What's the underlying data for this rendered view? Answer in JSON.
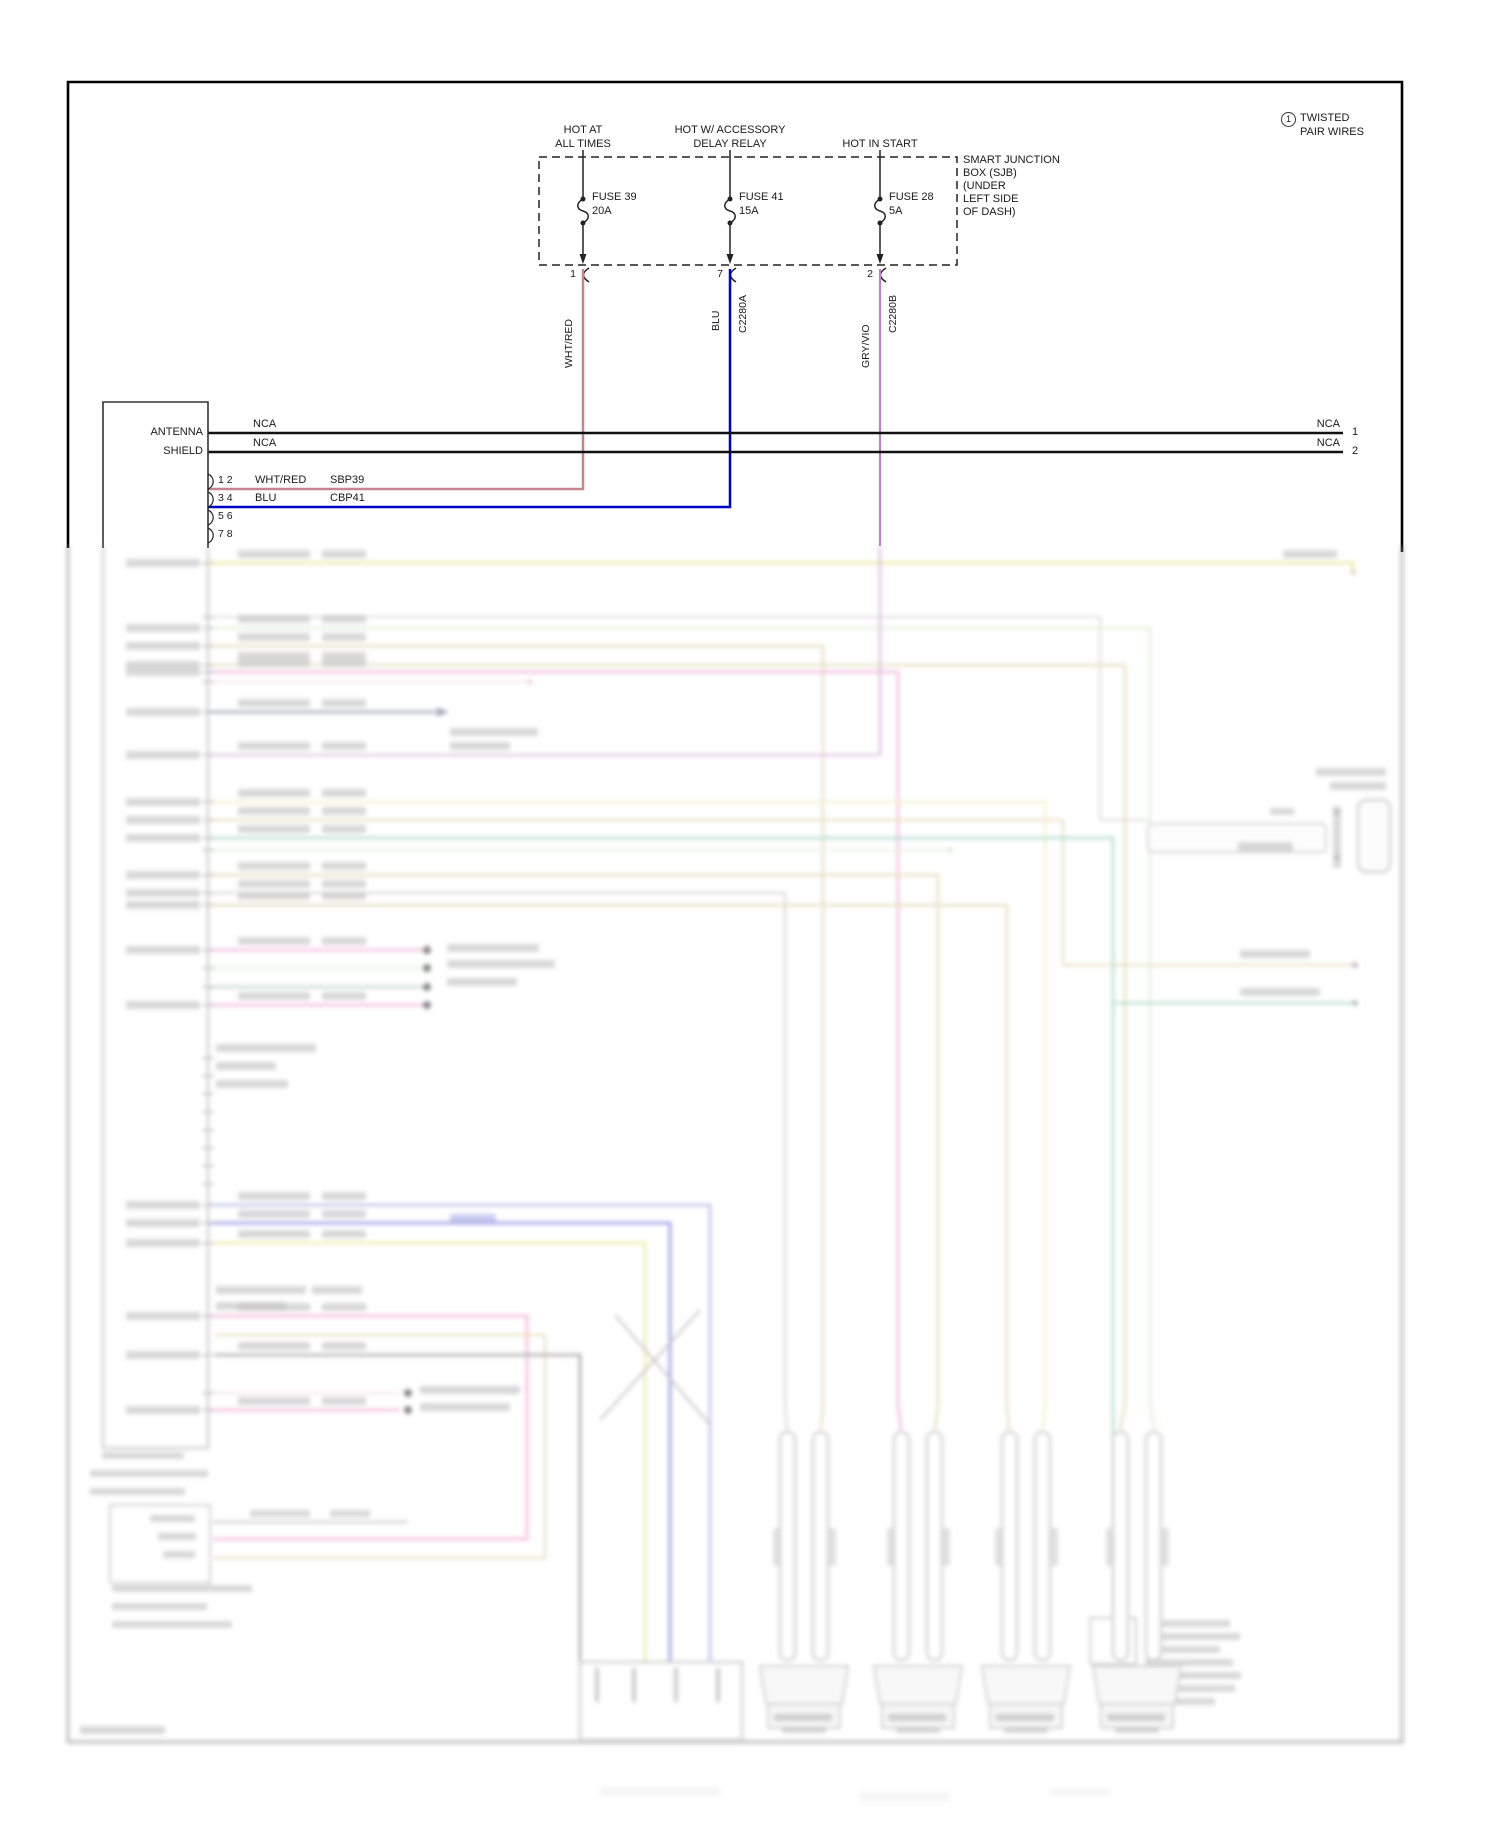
{
  "note": {
    "ref_number": "1",
    "line1": "TWISTED",
    "line2": "PAIR WIRES"
  },
  "power_labels": [
    {
      "line1": "HOT AT",
      "line2": "ALL TIMES"
    },
    {
      "line1": "HOT W/ ACCESSORY",
      "line2": "DELAY RELAY"
    },
    {
      "line1": "HOT IN START",
      "line2": ""
    }
  ],
  "sjb_label": {
    "lines": [
      "SMART JUNCTION",
      "BOX (SJB)",
      "(UNDER",
      "LEFT SIDE",
      "OF DASH)"
    ]
  },
  "fuses": [
    {
      "name": "FUSE 39",
      "rating": "20A",
      "pin": "1",
      "wire_label": "WHT/RED",
      "connector": "",
      "wire_color": "#c4868c"
    },
    {
      "name": "FUSE 41",
      "rating": "15A",
      "pin": "7",
      "wire_label": "BLU",
      "connector": "C2280A",
      "wire_color": "#0000cd"
    },
    {
      "name": "FUSE 28",
      "rating": "5A",
      "pin": "2",
      "wire_label": "GRY/VIO",
      "connector": "C2280B",
      "wire_color": "#bd84c5"
    }
  ],
  "radio": {
    "name_lines": [
      "ANTENNA",
      "SHIELD"
    ],
    "pin_rows": [
      {
        "pins": "1 2",
        "wire": "WHT/RED",
        "circuit": "SBP39"
      },
      {
        "pins": "3 4",
        "wire": "BLU",
        "circuit": "CBP41"
      },
      {
        "pins": "5 6",
        "wire": "",
        "circuit": ""
      },
      {
        "pins": "7 8",
        "wire": "",
        "circuit": ""
      }
    ]
  },
  "shield_lines": {
    "left_labels": [
      "NCA",
      "NCA"
    ],
    "right_labels": [
      "NCA",
      "NCA"
    ],
    "right_pins": [
      "1",
      "2"
    ],
    "color": "#111111"
  }
}
